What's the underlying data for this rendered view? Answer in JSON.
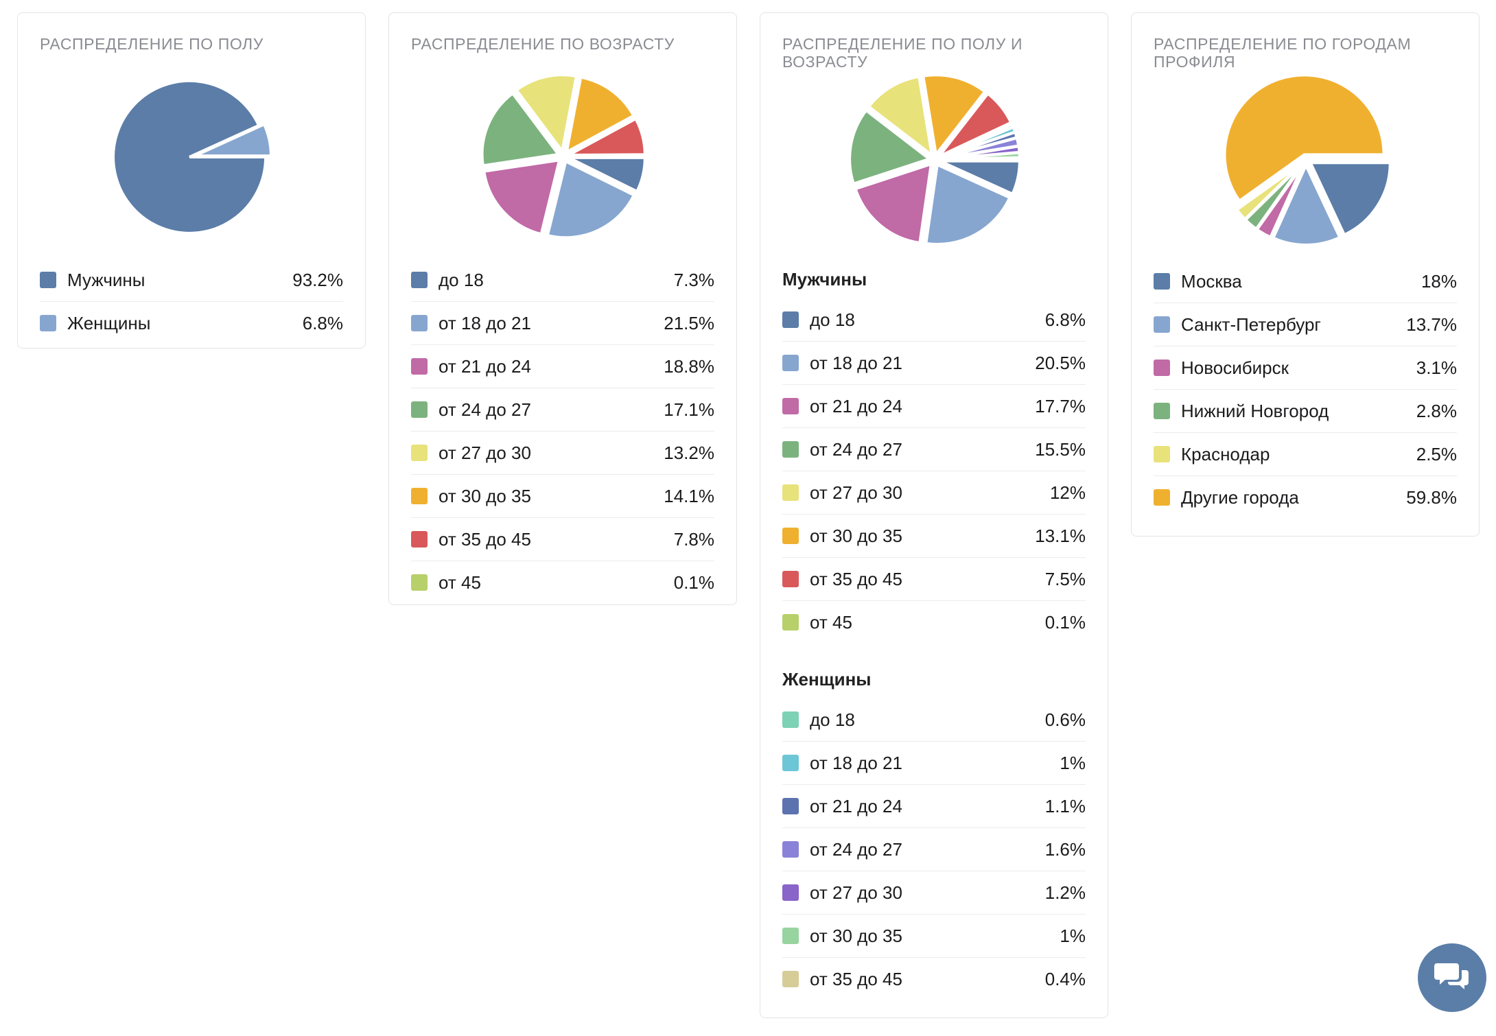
{
  "colors": [
    "#5b7da8",
    "#86a6cf",
    "#c06aa6",
    "#7cb27e",
    "#e8e27a",
    "#f0b02f",
    "#d9595a",
    "#b7d06a",
    "#7dd1b4",
    "#6cc6d6",
    "#5d73b0",
    "#8a82d8",
    "#8964c9",
    "#98d4a0",
    "#d6cc98"
  ],
  "chart_data": [
    {
      "type": "pie",
      "title": "Распределение по полу",
      "series": [
        {
          "values": [
            93.2,
            6.8
          ]
        }
      ],
      "categories": [
        "Мужчины",
        "Женщины"
      ],
      "values_label": [
        "93.2%",
        "6.8%"
      ]
    },
    {
      "type": "pie",
      "title": "Распределение по возрасту",
      "series": [
        {
          "values": [
            7.3,
            21.5,
            18.8,
            17.1,
            13.2,
            14.1,
            7.8,
            0.1
          ]
        }
      ],
      "categories": [
        "до 18",
        "от 18 до 21",
        "от 21 до 24",
        "от 24 до 27",
        "от 27 до 30",
        "от 30 до 35",
        "от 35 до 45",
        "от 45"
      ],
      "values_label": [
        "7.3%",
        "21.5%",
        "18.8%",
        "17.1%",
        "13.2%",
        "14.1%",
        "7.8%",
        "0.1%"
      ]
    },
    {
      "type": "pie",
      "title": "Распределение по полу и возрасту",
      "groups": [
        {
          "name": "Мужчины",
          "categories": [
            "до 18",
            "от 18 до 21",
            "от 21 до 24",
            "от 24 до 27",
            "от 27 до 30",
            "от 30 до 35",
            "от 35 до 45",
            "от 45"
          ],
          "values": [
            6.8,
            20.5,
            17.7,
            15.5,
            12,
            13.1,
            7.5,
            0.1
          ],
          "values_label": [
            "6.8%",
            "20.5%",
            "17.7%",
            "15.5%",
            "12%",
            "13.1%",
            "7.5%",
            "0.1%"
          ]
        },
        {
          "name": "Женщины",
          "categories": [
            "до 18",
            "от 18 до 21",
            "от 21 до 24",
            "от 24 до 27",
            "от 27 до 30",
            "от 30 до 35",
            "от 35 до 45"
          ],
          "values": [
            0.6,
            1,
            1.1,
            1.6,
            1.2,
            1,
            0.4
          ],
          "values_label": [
            "0.6%",
            "1%",
            "1.1%",
            "1.6%",
            "1.2%",
            "1%",
            "0.4%"
          ]
        }
      ]
    },
    {
      "type": "pie",
      "title": "Распределение по городам профиля",
      "series": [
        {
          "values": [
            18,
            13.7,
            3.1,
            2.8,
            2.5,
            59.8
          ]
        }
      ],
      "categories": [
        "Москва",
        "Санкт-Петербург",
        "Новосибирск",
        "Нижний Новгород",
        "Краснодар",
        "Другие города"
      ],
      "values_label": [
        "18%",
        "13.7%",
        "3.1%",
        "2.8%",
        "2.5%",
        "59.8%"
      ]
    }
  ],
  "chat": {
    "icon": "chat-bubbles-icon"
  }
}
